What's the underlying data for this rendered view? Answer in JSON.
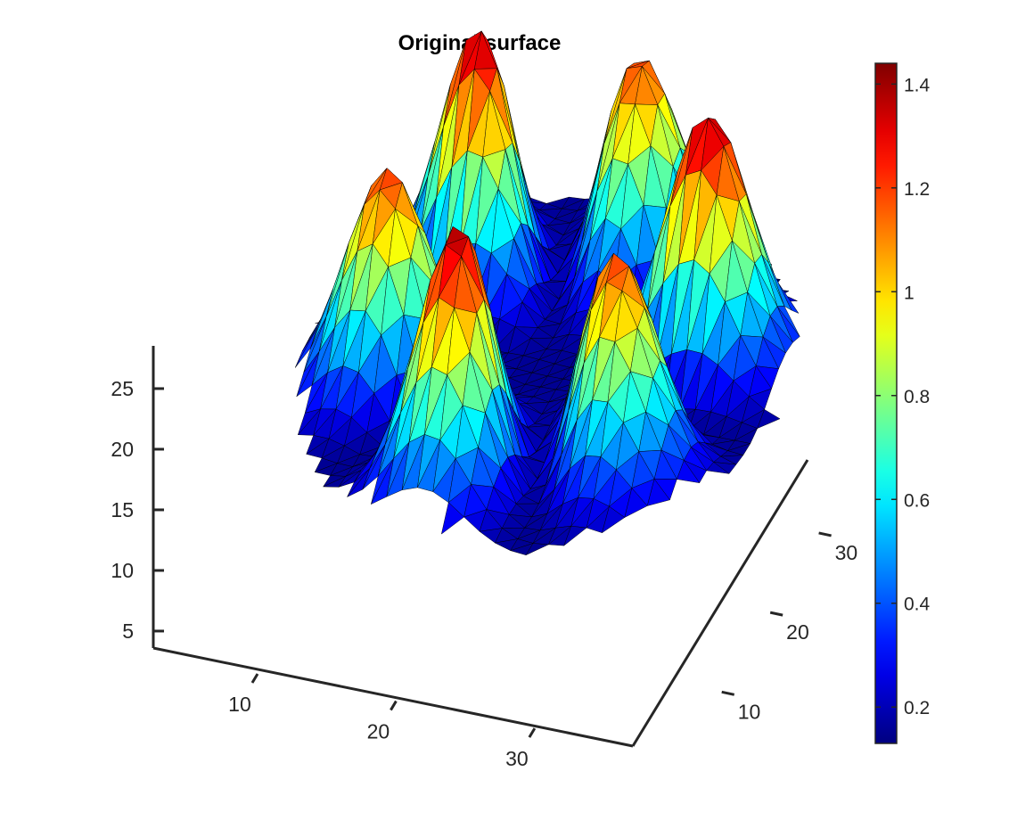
{
  "chart_data": {
    "type": "surface",
    "title": "Original surface",
    "surface_model": {
      "description_domain": "radially symmetric ring of six peaks over a circular disk",
      "x_range": [
        1,
        37
      ],
      "y_range": [
        1,
        37
      ],
      "center": [
        19,
        19
      ],
      "peak_count": 6,
      "peak_ring_radius": 11,
      "peak_height": 1.42,
      "base_level": 0.15
    },
    "z_axis": {
      "ticks": [
        5,
        10,
        15,
        20,
        25
      ],
      "ylim": [
        3,
        29
      ]
    },
    "x_axis": {
      "ticks": [
        10,
        20,
        30
      ]
    },
    "y_axis": {
      "ticks": [
        10,
        20,
        30
      ]
    },
    "colorbar": {
      "colormap": "jet",
      "range": [
        0.13,
        1.44
      ],
      "ticks": [
        0.2,
        0.4,
        0.6,
        0.8,
        1,
        1.2,
        1.4
      ],
      "tick_labels": [
        "0.2",
        "0.4",
        "0.6",
        "0.8",
        "1",
        "1.2",
        "1.4"
      ]
    }
  }
}
